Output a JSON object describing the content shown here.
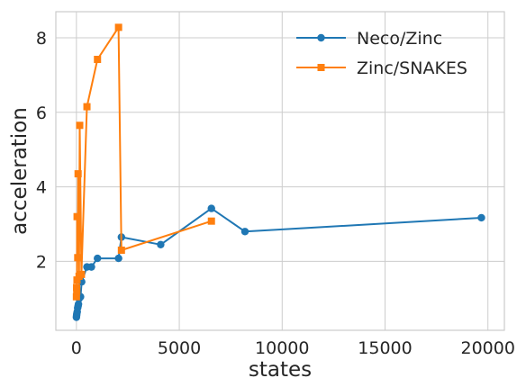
{
  "chart_data": {
    "type": "line",
    "xlabel": "states",
    "ylabel": "acceleration",
    "xlim": [
      -1000,
      20800
    ],
    "ylim": [
      0.15,
      8.7
    ],
    "grid": true,
    "legend_position": "top-right",
    "x_ticks": [
      0,
      5000,
      10000,
      15000,
      20000
    ],
    "x_tick_labels": [
      "0",
      "5000",
      "10000",
      "15000",
      "20000"
    ],
    "y_ticks": [
      2,
      4,
      6,
      8
    ],
    "y_tick_labels": [
      "2",
      "4",
      "6",
      "8"
    ],
    "series": [
      {
        "name": "Neco/Zinc",
        "color": "#1f77b4",
        "marker": "circle",
        "x": [
          0,
          10,
          20,
          40,
          60,
          80,
          100,
          130,
          200,
          256,
          512,
          729,
          1024,
          2048,
          2187,
          4096,
          6561,
          8192,
          19683
        ],
        "y": [
          0.5,
          0.55,
          0.6,
          0.65,
          0.75,
          0.8,
          0.85,
          1.0,
          1.05,
          1.45,
          1.85,
          1.85,
          2.08,
          2.08,
          2.65,
          2.45,
          3.42,
          2.8,
          3.17
        ]
      },
      {
        "name": "Zinc/SNAKES",
        "color": "#ff7f0e",
        "marker": "square",
        "x": [
          0,
          8,
          16,
          27,
          32,
          64,
          81,
          128,
          160,
          243,
          512,
          1024,
          2048,
          2187,
          6561
        ],
        "y": [
          1.05,
          1.3,
          1.2,
          1.5,
          3.2,
          2.1,
          4.35,
          1.6,
          5.65,
          1.65,
          6.15,
          7.42,
          8.28,
          2.3,
          3.08
        ]
      }
    ]
  }
}
